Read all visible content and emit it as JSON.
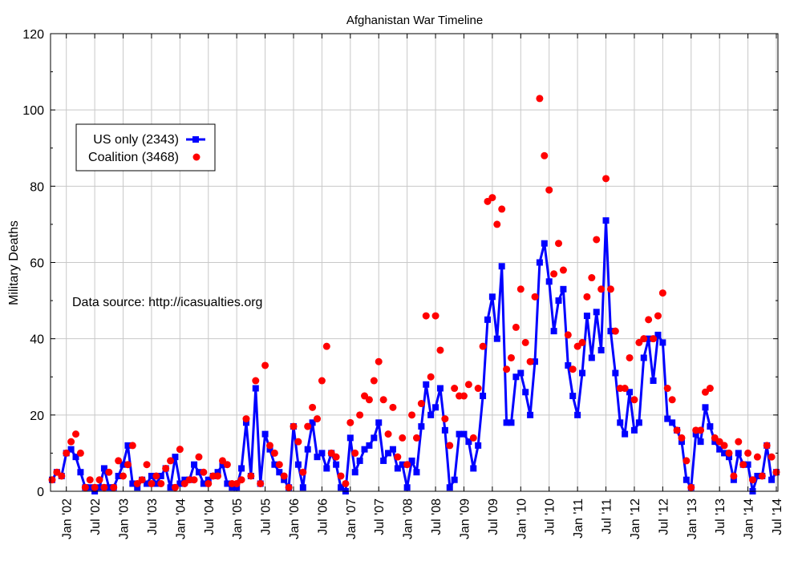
{
  "chart_data": {
    "type": "line",
    "title": "Afghanistan War Timeline",
    "xlabel": "",
    "ylabel": "Military Deaths",
    "ylim": [
      0,
      120
    ],
    "yticks": [
      0,
      20,
      40,
      60,
      80,
      100,
      120
    ],
    "grid": true,
    "legend_position": "top-left",
    "annotation": "Data source: http://icasualties.org",
    "x_start": "2001-10",
    "xticks": [
      {
        "label": "Jan '02",
        "month": "2002-01"
      },
      {
        "label": "Jul '02",
        "month": "2002-07"
      },
      {
        "label": "Jan '03",
        "month": "2003-01"
      },
      {
        "label": "Jul '03",
        "month": "2003-07"
      },
      {
        "label": "Jan '04",
        "month": "2004-01"
      },
      {
        "label": "Jul '04",
        "month": "2004-07"
      },
      {
        "label": "Jan '05",
        "month": "2005-01"
      },
      {
        "label": "Jul '05",
        "month": "2005-07"
      },
      {
        "label": "Jan '06",
        "month": "2006-01"
      },
      {
        "label": "Jul '06",
        "month": "2006-07"
      },
      {
        "label": "Jan '07",
        "month": "2007-01"
      },
      {
        "label": "Jul '07",
        "month": "2007-07"
      },
      {
        "label": "Jan '08",
        "month": "2008-01"
      },
      {
        "label": "Jul '08",
        "month": "2008-07"
      },
      {
        "label": "Jan '09",
        "month": "2009-01"
      },
      {
        "label": "Jul '09",
        "month": "2009-07"
      },
      {
        "label": "Jan '10",
        "month": "2010-01"
      },
      {
        "label": "Jul '10",
        "month": "2010-07"
      },
      {
        "label": "Jan '11",
        "month": "2011-01"
      },
      {
        "label": "Jul '11",
        "month": "2011-07"
      },
      {
        "label": "Jan '12",
        "month": "2012-01"
      },
      {
        "label": "Jul '12",
        "month": "2012-07"
      },
      {
        "label": "Jan '13",
        "month": "2013-01"
      },
      {
        "label": "Jul '13",
        "month": "2013-07"
      },
      {
        "label": "Jan '14",
        "month": "2014-01"
      },
      {
        "label": "Jul '14",
        "month": "2014-07"
      }
    ],
    "series": [
      {
        "name": "US only (2343)",
        "style": "line-square",
        "color": "#0000ff",
        "values": [
          3,
          5,
          4,
          10,
          11,
          9,
          5,
          1,
          1,
          0,
          1,
          6,
          1,
          1,
          4,
          7,
          12,
          2,
          1,
          3,
          2,
          4,
          2,
          4,
          6,
          1,
          9,
          2,
          3,
          3,
          7,
          5,
          2,
          3,
          4,
          5,
          7,
          2,
          1,
          1,
          6,
          18,
          4,
          27,
          2,
          15,
          11,
          7,
          5,
          3,
          1,
          17,
          7,
          1,
          11,
          18,
          9,
          10,
          6,
          10,
          7,
          1,
          0,
          14,
          5,
          8,
          11,
          12,
          14,
          18,
          8,
          10,
          11,
          6,
          7,
          1,
          8,
          5,
          17,
          28,
          20,
          22,
          27,
          16,
          1,
          3,
          15,
          15,
          13,
          6,
          12,
          25,
          45,
          51,
          40,
          59,
          18,
          18,
          30,
          31,
          26,
          20,
          34,
          60,
          65,
          55,
          42,
          50,
          53,
          33,
          25,
          20,
          31,
          46,
          35,
          47,
          37,
          71,
          42,
          31,
          18,
          15,
          26,
          16,
          18,
          35,
          40,
          29,
          41,
          39,
          19,
          18,
          16,
          13,
          3,
          1,
          15,
          13,
          22,
          17,
          13,
          11,
          10,
          9,
          3,
          10,
          7,
          7,
          0,
          4,
          4,
          12,
          3,
          5
        ]
      },
      {
        "name": "Coalition (3468)",
        "style": "dots",
        "color": "#ff0000",
        "values": [
          3,
          5,
          4,
          10,
          13,
          15,
          10,
          1,
          3,
          1,
          3,
          1,
          5,
          1,
          8,
          4,
          7,
          12,
          2,
          3,
          7,
          2,
          4,
          2,
          6,
          8,
          1,
          11,
          2,
          3,
          3,
          9,
          5,
          2,
          4,
          4,
          8,
          7,
          2,
          2,
          3,
          19,
          4,
          29,
          2,
          33,
          12,
          10,
          7,
          4,
          1,
          17,
          13,
          5,
          17,
          22,
          19,
          29,
          38,
          10,
          9,
          4,
          2,
          18,
          10,
          20,
          25,
          24,
          29,
          34,
          24,
          15,
          22,
          9,
          14,
          7,
          20,
          14,
          23,
          46,
          30,
          46,
          37,
          19,
          12,
          27,
          25,
          25,
          28,
          14,
          27,
          38,
          76,
          77,
          70,
          74,
          32,
          35,
          43,
          53,
          39,
          34,
          51,
          103,
          88,
          79,
          57,
          65,
          58,
          41,
          32,
          38,
          39,
          51,
          56,
          66,
          53,
          82,
          53,
          42,
          27,
          27,
          35,
          24,
          39,
          40,
          45,
          40,
          46,
          52,
          27,
          24,
          16,
          14,
          8,
          1,
          16,
          16,
          26,
          27,
          14,
          13,
          12,
          10,
          4,
          13,
          7,
          10,
          3,
          9,
          4,
          12,
          9,
          5
        ]
      }
    ]
  }
}
